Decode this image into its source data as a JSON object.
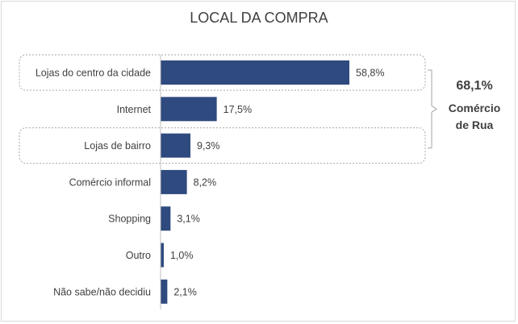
{
  "chart_data": {
    "type": "bar",
    "orientation": "horizontal",
    "title": "LOCAL DA COMPRA",
    "categories": [
      "Lojas do centro da cidade",
      "Internet",
      "Lojas de bairro",
      "Comércio informal",
      "Shopping",
      "Outro",
      "Não sabe/não decidiu"
    ],
    "values": [
      58.8,
      17.5,
      9.3,
      8.2,
      3.1,
      1.0,
      2.1
    ],
    "value_labels": [
      "58,8%",
      "17,5%",
      "9,3%",
      "8,2%",
      "3,1%",
      "1,0%",
      "2,1%"
    ],
    "bar_color": "#2F4A7F",
    "xlim": [
      0,
      100
    ],
    "annotation": {
      "value": "68,1%",
      "label_line1": "Comércio",
      "label_line2": "de Rua",
      "highlighted_categories": [
        "Lojas do centro da cidade",
        "Lojas de bairro"
      ]
    }
  }
}
